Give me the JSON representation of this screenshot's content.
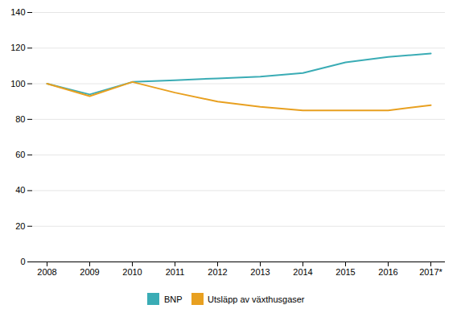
{
  "chart_data": {
    "type": "line",
    "categories": [
      "2008",
      "2009",
      "2010",
      "2011",
      "2012",
      "2013",
      "2014",
      "2015",
      "2016",
      "2017*"
    ],
    "series": [
      {
        "name": "BNP",
        "color": "#3aacb5",
        "values": [
          100,
          94,
          101,
          102,
          103,
          104,
          106,
          112,
          115,
          117
        ]
      },
      {
        "name": "Utsläpp av växthusgaser",
        "color": "#e8a020",
        "values": [
          100,
          93,
          101,
          95,
          90,
          87,
          85,
          85,
          85,
          88
        ]
      }
    ],
    "ylim": [
      0,
      140
    ],
    "yticks": [
      0,
      20,
      40,
      60,
      80,
      100,
      120,
      140
    ],
    "grid": true,
    "legend": "bottom"
  }
}
